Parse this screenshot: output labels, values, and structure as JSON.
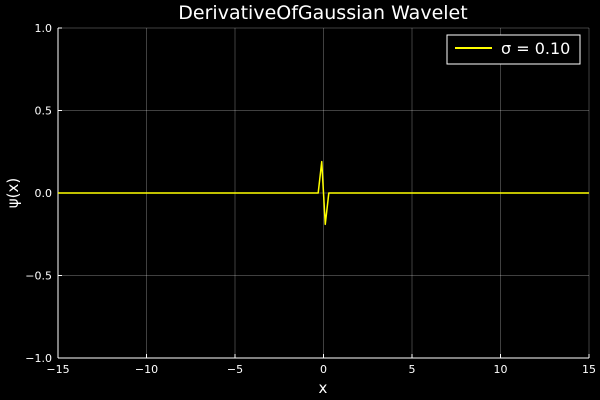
{
  "chart_data": {
    "type": "line",
    "title": "DerivativeOfGaussian Wavelet",
    "xlabel": "x",
    "ylabel": "ψ(x)",
    "xlim": [
      -15,
      15
    ],
    "ylim": [
      -1.0,
      1.0
    ],
    "xticks": [
      -15,
      -10,
      -5,
      0,
      5,
      10,
      15
    ],
    "xtick_labels": [
      "−15",
      "−10",
      "−5",
      "0",
      "5",
      "10",
      "15"
    ],
    "yticks": [
      -1.0,
      -0.5,
      0.0,
      0.5,
      1.0
    ],
    "ytick_labels": [
      "−1.0",
      "−0.5",
      "0.0",
      "0.5",
      "1.0"
    ],
    "grid": true,
    "legend_position": "top-right",
    "background_color": "#000000",
    "series": [
      {
        "name": "σ = 0.10",
        "color": "#ffff00",
        "x": [
          -15,
          -0.3,
          -0.1,
          0.1,
          0.3,
          15
        ],
        "y": [
          0.0,
          0.0,
          0.19,
          -0.19,
          0.0,
          0.0
        ]
      }
    ]
  }
}
